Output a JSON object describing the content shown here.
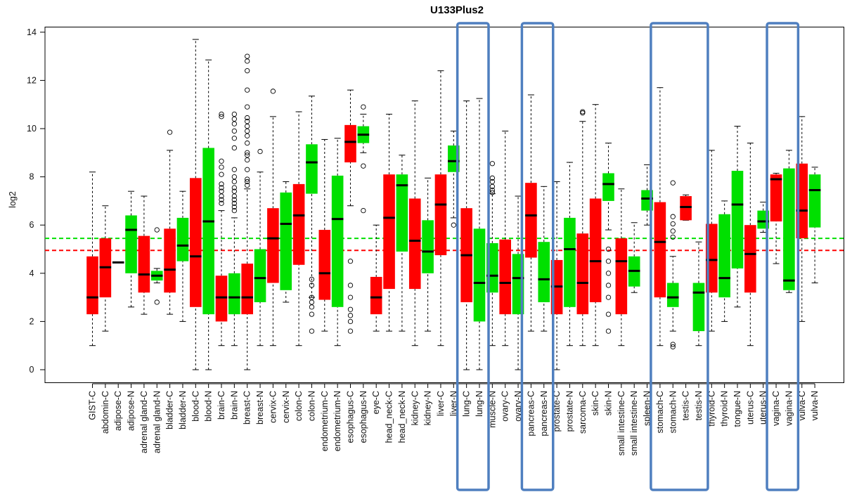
{
  "chart_data": {
    "type": "box",
    "title": "U133Plus2",
    "xlabel": "",
    "ylabel": "log2",
    "ylim": [
      -0.5,
      14.3
    ],
    "yticks": [
      0,
      2,
      4,
      6,
      8,
      10,
      12,
      14
    ],
    "grid": false,
    "colors": {
      "tumor": "#ff0000",
      "normal": "#00e000",
      "highlight": "#4f7fbf"
    },
    "reference_lines": [
      {
        "y": 5.45,
        "color": "#00e000",
        "style": "dashed"
      },
      {
        "y": 4.95,
        "color": "#ff0000",
        "style": "dashed"
      }
    ],
    "categories": [
      "GIST-C",
      "abdomin-C",
      "adipose-C",
      "adipose-N",
      "adrenal gland-C",
      "adrenal gland-N",
      "bladder-C",
      "bladder-N",
      "blood-C",
      "blood-N",
      "brain-C",
      "brain-N",
      "breast-C",
      "breast-N",
      "cervix-C",
      "cervix-N",
      "colon-C",
      "colon-N",
      "endometrium-C",
      "endometrium-N",
      "esophagus-C",
      "esophagus-N",
      "eye-C",
      "head_neck-C",
      "head_neck-N",
      "kidney-C",
      "kidney-N",
      "liver-C",
      "liver-N",
      "lung-C",
      "lung-N",
      "muscle-N",
      "ovary-C",
      "ovary-N",
      "pancreas-C",
      "pancreas-N",
      "prostate-C",
      "prostate-N",
      "sarcoma-C",
      "skin-C",
      "skin-N",
      "small intestine-C",
      "small intestine-N",
      "spleen-N",
      "stomach-C",
      "stomach-N",
      "testis-C",
      "testis-N",
      "thyroid-C",
      "thyroid-N",
      "tongue-N",
      "uterus-C",
      "uterus-N",
      "vagina-C",
      "vagina-N",
      "vulva-C",
      "vulva-N"
    ],
    "boxes": [
      {
        "group": "tumor",
        "wlo": 1.0,
        "q1": 2.3,
        "med": 3.0,
        "q3": 4.7,
        "whi": 8.2,
        "out": []
      },
      {
        "group": "tumor",
        "wlo": 1.6,
        "q1": 3.0,
        "med": 4.25,
        "q3": 5.45,
        "whi": 6.8,
        "out": []
      },
      {
        "group": "tumor",
        "wlo": 4.45,
        "q1": 4.45,
        "med": 4.45,
        "q3": 4.45,
        "whi": 4.45,
        "out": []
      },
      {
        "group": "normal",
        "wlo": 2.6,
        "q1": 4.0,
        "med": 5.8,
        "q3": 6.4,
        "whi": 7.4,
        "out": []
      },
      {
        "group": "tumor",
        "wlo": 2.3,
        "q1": 3.2,
        "med": 3.95,
        "q3": 5.55,
        "whi": 7.2,
        "out": []
      },
      {
        "group": "normal",
        "wlo": 3.6,
        "q1": 3.7,
        "med": 3.9,
        "q3": 4.1,
        "whi": 4.2,
        "out": [
          5.8,
          2.8
        ]
      },
      {
        "group": "tumor",
        "wlo": 2.3,
        "q1": 3.2,
        "med": 4.15,
        "q3": 5.85,
        "whi": 9.1,
        "out": [
          9.85
        ]
      },
      {
        "group": "normal",
        "wlo": 2.0,
        "q1": 4.5,
        "med": 5.15,
        "q3": 6.3,
        "whi": 7.4,
        "out": []
      },
      {
        "group": "tumor",
        "wlo": 0.0,
        "q1": 2.6,
        "med": 4.7,
        "q3": 7.95,
        "whi": 13.7,
        "out": []
      },
      {
        "group": "normal",
        "wlo": 0.0,
        "q1": 2.3,
        "med": 6.15,
        "q3": 9.2,
        "whi": 12.85,
        "out": []
      },
      {
        "group": "tumor",
        "wlo": 1.0,
        "q1": 2.0,
        "med": 3.0,
        "q3": 3.9,
        "whi": 6.6,
        "out": [
          6.9,
          7.05,
          7.2,
          7.4,
          7.55,
          7.7,
          8.1,
          8.4,
          8.65,
          10.5,
          10.6
        ]
      },
      {
        "group": "normal",
        "wlo": 1.0,
        "q1": 2.3,
        "med": 3.0,
        "q3": 4.0,
        "whi": 6.3,
        "out": [
          6.6,
          6.75,
          6.9,
          7.05,
          7.2,
          7.4,
          7.55,
          7.8,
          8.0,
          8.3,
          9.2,
          9.6,
          9.9,
          10.2,
          10.4,
          10.6
        ]
      },
      {
        "group": "tumor",
        "wlo": 0.0,
        "q1": 2.3,
        "med": 3.0,
        "q3": 4.4,
        "whi": 7.5,
        "out": [
          7.65,
          7.8,
          7.9,
          8.3,
          8.7,
          8.9,
          9.0,
          9.4,
          9.7,
          9.9,
          10.1,
          10.3,
          10.45,
          10.9,
          11.6,
          12.4,
          12.8,
          13.0
        ]
      },
      {
        "group": "normal",
        "wlo": 1.0,
        "q1": 2.8,
        "med": 3.8,
        "q3": 5.0,
        "whi": 8.2,
        "out": [
          9.05
        ]
      },
      {
        "group": "tumor",
        "wlo": 1.0,
        "q1": 3.6,
        "med": 5.45,
        "q3": 6.7,
        "whi": 10.5,
        "out": [
          11.55
        ]
      },
      {
        "group": "normal",
        "wlo": 2.8,
        "q1": 3.3,
        "med": 6.05,
        "q3": 7.35,
        "whi": 7.8,
        "out": []
      },
      {
        "group": "tumor",
        "wlo": 1.0,
        "q1": 4.35,
        "med": 6.4,
        "q3": 7.7,
        "whi": 10.7,
        "out": []
      },
      {
        "group": "normal",
        "wlo": 3.0,
        "q1": 7.3,
        "med": 8.6,
        "q3": 9.35,
        "whi": 11.35,
        "out": [
          1.6,
          2.3,
          2.6,
          2.8,
          3.0,
          3.5,
          3.75
        ]
      },
      {
        "group": "tumor",
        "wlo": 1.6,
        "q1": 2.9,
        "med": 4.0,
        "q3": 5.8,
        "whi": 9.55,
        "out": []
      },
      {
        "group": "normal",
        "wlo": 1.0,
        "q1": 2.6,
        "med": 6.25,
        "q3": 8.05,
        "whi": 9.6,
        "out": []
      },
      {
        "group": "tumor",
        "wlo": 6.8,
        "q1": 8.6,
        "med": 9.45,
        "q3": 10.15,
        "whi": 11.6,
        "out": [
          4.5,
          3.5,
          3.0,
          2.5,
          2.25,
          2.0,
          1.6
        ]
      },
      {
        "group": "normal",
        "wlo": 9.0,
        "q1": 9.4,
        "med": 9.75,
        "q3": 10.1,
        "whi": 10.6,
        "out": [
          10.9,
          8.45,
          6.6
        ]
      },
      {
        "group": "tumor",
        "wlo": 1.6,
        "q1": 2.3,
        "med": 3.0,
        "q3": 3.85,
        "whi": 6.0,
        "out": []
      },
      {
        "group": "tumor",
        "wlo": 1.6,
        "q1": 3.35,
        "med": 6.3,
        "q3": 8.1,
        "whi": 10.6,
        "out": []
      },
      {
        "group": "normal",
        "wlo": 1.6,
        "q1": 4.9,
        "med": 7.65,
        "q3": 8.1,
        "whi": 8.9,
        "out": []
      },
      {
        "group": "tumor",
        "wlo": 1.0,
        "q1": 3.35,
        "med": 5.35,
        "q3": 7.1,
        "whi": 11.15,
        "out": []
      },
      {
        "group": "normal",
        "wlo": 1.6,
        "q1": 4.0,
        "med": 4.9,
        "q3": 6.2,
        "whi": 7.95,
        "out": []
      },
      {
        "group": "tumor",
        "wlo": 1.0,
        "q1": 4.75,
        "med": 6.85,
        "q3": 8.1,
        "whi": 12.4,
        "out": []
      },
      {
        "group": "normal",
        "wlo": 6.3,
        "q1": 8.2,
        "med": 8.65,
        "q3": 9.3,
        "whi": 9.9,
        "out": [
          6.0
        ]
      },
      {
        "group": "tumor",
        "wlo": 0.0,
        "q1": 2.8,
        "med": 4.75,
        "q3": 6.7,
        "whi": 11.15,
        "out": []
      },
      {
        "group": "normal",
        "wlo": 0.0,
        "q1": 2.0,
        "med": 3.6,
        "q3": 5.85,
        "whi": 11.25,
        "out": []
      },
      {
        "group": "normal",
        "wlo": 1.0,
        "q1": 3.2,
        "med": 3.9,
        "q3": 5.25,
        "whi": 7.3,
        "out": [
          7.35,
          7.45,
          7.6,
          7.8,
          7.95,
          8.55
        ]
      },
      {
        "group": "tumor",
        "wlo": 1.0,
        "q1": 2.3,
        "med": 3.6,
        "q3": 5.4,
        "whi": 9.9,
        "out": []
      },
      {
        "group": "normal",
        "wlo": 0.0,
        "q1": 2.3,
        "med": 3.8,
        "q3": 4.8,
        "whi": 7.2,
        "out": []
      },
      {
        "group": "tumor",
        "wlo": 1.6,
        "q1": 4.65,
        "med": 6.4,
        "q3": 7.75,
        "whi": 11.4,
        "out": []
      },
      {
        "group": "normal",
        "wlo": 1.6,
        "q1": 2.8,
        "med": 3.75,
        "q3": 5.3,
        "whi": 7.6,
        "out": []
      },
      {
        "group": "tumor",
        "wlo": 0.0,
        "q1": 2.3,
        "med": 3.45,
        "q3": 4.55,
        "whi": 7.8,
        "out": []
      },
      {
        "group": "normal",
        "wlo": 1.0,
        "q1": 2.6,
        "med": 5.0,
        "q3": 6.3,
        "whi": 8.6,
        "out": []
      },
      {
        "group": "tumor",
        "wlo": 1.0,
        "q1": 2.3,
        "med": 3.6,
        "q3": 5.65,
        "whi": 10.3,
        "out": [
          10.65,
          10.7
        ]
      },
      {
        "group": "tumor",
        "wlo": 1.0,
        "q1": 2.8,
        "med": 4.5,
        "q3": 7.1,
        "whi": 11.0,
        "out": []
      },
      {
        "group": "normal",
        "wlo": 5.8,
        "q1": 7.0,
        "med": 7.7,
        "q3": 8.15,
        "whi": 9.4,
        "out": [
          5.0,
          4.5,
          4.0,
          3.5,
          3.0,
          2.3,
          1.6
        ]
      },
      {
        "group": "tumor",
        "wlo": 1.0,
        "q1": 2.3,
        "med": 4.5,
        "q3": 5.45,
        "whi": 7.5,
        "out": []
      },
      {
        "group": "normal",
        "wlo": 3.2,
        "q1": 3.45,
        "med": 4.1,
        "q3": 4.7,
        "whi": 6.1,
        "out": []
      },
      {
        "group": "normal",
        "wlo": 6.0,
        "q1": 6.6,
        "med": 7.1,
        "q3": 7.45,
        "whi": 8.5,
        "out": []
      },
      {
        "group": "tumor",
        "wlo": 1.0,
        "q1": 3.0,
        "med": 5.3,
        "q3": 6.95,
        "whi": 11.7,
        "out": []
      },
      {
        "group": "normal",
        "wlo": 1.6,
        "q1": 2.6,
        "med": 3.0,
        "q3": 3.6,
        "whi": 4.7,
        "out": [
          5.5,
          5.75,
          6.05,
          6.35,
          7.75,
          1.05,
          0.95
        ]
      },
      {
        "group": "tumor",
        "wlo": 6.2,
        "q1": 6.2,
        "med": 6.75,
        "q3": 7.2,
        "whi": 7.25,
        "out": []
      },
      {
        "group": "normal",
        "wlo": 1.0,
        "q1": 1.6,
        "med": 3.2,
        "q3": 3.6,
        "whi": 5.3,
        "out": []
      },
      {
        "group": "tumor",
        "wlo": 1.6,
        "q1": 3.2,
        "med": 4.55,
        "q3": 6.05,
        "whi": 9.1,
        "out": []
      },
      {
        "group": "normal",
        "wlo": 2.0,
        "q1": 3.0,
        "med": 3.8,
        "q3": 6.45,
        "whi": 7.0,
        "out": []
      },
      {
        "group": "normal",
        "wlo": 2.6,
        "q1": 4.2,
        "med": 6.85,
        "q3": 8.25,
        "whi": 10.1,
        "out": []
      },
      {
        "group": "tumor",
        "wlo": 1.0,
        "q1": 3.2,
        "med": 4.8,
        "q3": 6.0,
        "whi": 9.4,
        "out": []
      },
      {
        "group": "normal",
        "wlo": 5.7,
        "q1": 5.85,
        "med": 6.15,
        "q3": 6.6,
        "whi": 6.95,
        "out": []
      },
      {
        "group": "tumor",
        "wlo": 4.4,
        "q1": 6.15,
        "med": 7.9,
        "q3": 8.1,
        "whi": 8.15,
        "out": []
      },
      {
        "group": "normal",
        "wlo": 3.2,
        "q1": 3.3,
        "med": 3.7,
        "q3": 8.35,
        "whi": 9.1,
        "out": []
      },
      {
        "group": "tumor",
        "wlo": 2.0,
        "q1": 5.45,
        "med": 6.6,
        "q3": 8.55,
        "whi": 10.5,
        "out": []
      },
      {
        "group": "normal",
        "wlo": 3.6,
        "q1": 5.9,
        "med": 7.45,
        "q3": 8.1,
        "whi": 8.4,
        "out": []
      }
    ],
    "highlight_groups": [
      [
        "lung-C",
        "lung-N"
      ],
      [
        "pancreas-C",
        "pancreas-N"
      ],
      [
        "stomach-C",
        "stomach-N",
        "testis-C",
        "testis-N"
      ],
      [
        "vagina-C",
        "vagina-N"
      ]
    ]
  }
}
